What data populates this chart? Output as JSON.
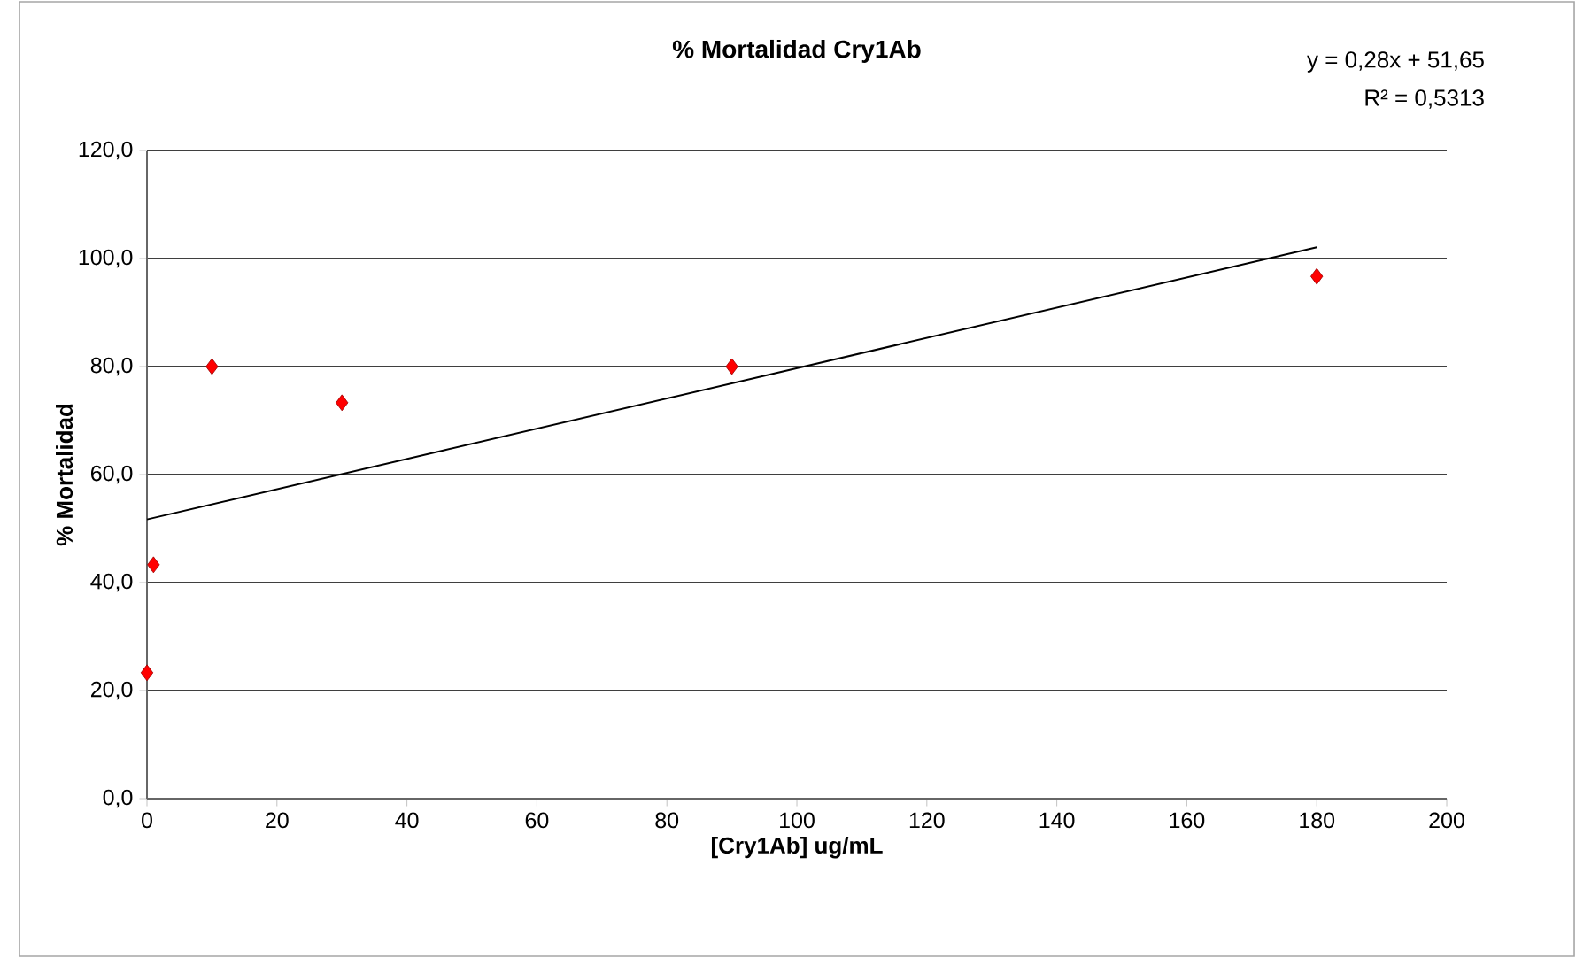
{
  "chart_data": {
    "type": "scatter",
    "title": "% Mortalidad Cry1Ab",
    "xlabel": "[Cry1Ab] ug/mL",
    "ylabel": "% Mortalidad",
    "series": [
      {
        "color": "#ff0000",
        "marker": "diamond",
        "x": [
          0,
          1,
          10,
          30,
          90,
          180
        ],
        "values": [
          23.3,
          43.3,
          80,
          73.3,
          80,
          96.7
        ]
      },
      {
        "type": "line",
        "color": "#000000",
        "marker": "none",
        "line_style": "solid",
        "x": [
          0,
          180
        ],
        "values": [
          51.7,
          102.1
        ]
      }
    ],
    "xlim": [
      0,
      200
    ],
    "ylim": [
      0,
      120
    ],
    "xticks": [
      0,
      20,
      40,
      60,
      80,
      100,
      120,
      140,
      160,
      180,
      200
    ],
    "yticks": [
      {
        "value": 0,
        "label": "0,0"
      },
      {
        "value": 20,
        "label": "20,0"
      },
      {
        "value": 40,
        "label": "40,0"
      },
      {
        "value": 60,
        "label": "60,0"
      },
      {
        "value": 80,
        "label": "80,0"
      },
      {
        "value": 100,
        "label": "100,0"
      },
      {
        "value": 120,
        "label": "120,0"
      }
    ],
    "grid": "y",
    "annotations": [
      "y = 0,28x + 51,65",
      "R² = 0,5313"
    ]
  }
}
